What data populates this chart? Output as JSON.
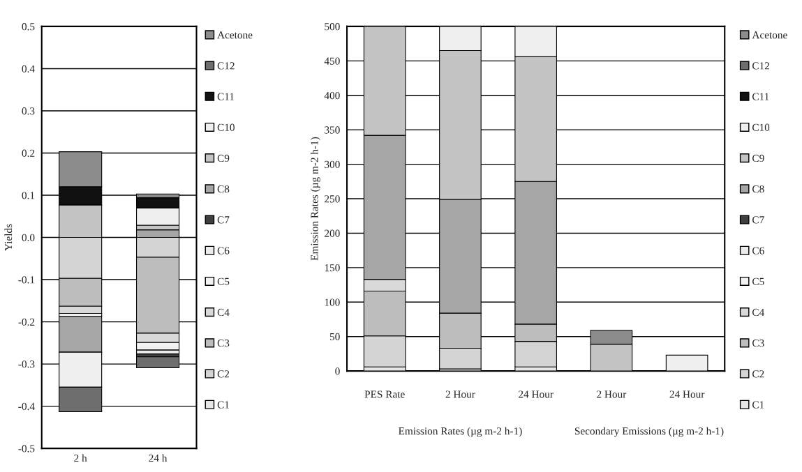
{
  "chart_data": [
    {
      "type": "bar",
      "stacked": true,
      "ylabel": "Yields",
      "categories": [
        "2 h",
        "24 h"
      ],
      "ylim": [
        -0.5,
        0.5
      ],
      "yticks": [
        -0.5,
        -0.4,
        -0.3,
        -0.2,
        -0.1,
        {
          "value": 0,
          "label": "0.0"
        },
        0.1,
        0.2,
        0.3,
        0.4,
        0.5
      ],
      "grid": "y",
      "legend": "right",
      "series": [
        {
          "name": "C1",
          "color": "#e6e6e6",
          "values": [
            null,
            null
          ]
        },
        {
          "name": "C2",
          "color": "#d4d4d4",
          "values": [
            -0.097,
            -0.047
          ]
        },
        {
          "name": "C3",
          "color": "#bdbdbd",
          "values": [
            -0.066,
            -0.18
          ]
        },
        {
          "name": "C4",
          "color": "#d9d9d9",
          "values": [
            -0.017,
            -0.022
          ]
        },
        {
          "name": "C5",
          "color": "#f2f2f2",
          "values": [
            -0.007,
            -0.018
          ]
        },
        {
          "name": "C6",
          "color": "#ececec",
          "values": [
            null,
            -0.009
          ]
        },
        {
          "name": "C7",
          "color": "#404040",
          "values": [
            null,
            -0.007
          ]
        },
        {
          "name": "C8",
          "color": "#a6a6a6",
          "values": [
            -0.085,
            0.018
          ]
        },
        {
          "name": "C9",
          "color": "#c4c4c4",
          "values": [
            0.077,
            0.011
          ]
        },
        {
          "name": "C10",
          "color": "#f0f0f0",
          "values": [
            -0.083,
            0.041
          ]
        },
        {
          "name": "C11",
          "color": "#111111",
          "values": [
            0.043,
            0.024
          ]
        },
        {
          "name": "C12",
          "color": "#6e6e6e",
          "values": [
            -0.058,
            -0.026
          ]
        },
        {
          "name": "Acetone",
          "color": "#8c8c8c",
          "values": [
            0.083,
            0.009
          ]
        }
      ]
    },
    {
      "type": "bar",
      "stacked": true,
      "ylabel": "Emission Rates (µg m-2 h-1)",
      "categories": [
        "PES Rate",
        "2 Hour",
        "24 Hour",
        "2 Hour",
        "24 Hour"
      ],
      "ylim": [
        0,
        500
      ],
      "yticks": [
        0,
        50,
        100,
        150,
        200,
        250,
        300,
        350,
        400,
        450,
        500
      ],
      "grid": "y",
      "legend": "right",
      "annotations": [
        "Emission Rates (µg m-2 h-1)",
        "Secondary Emissions (µg m-2 h-1)"
      ],
      "series": [
        {
          "name": "C1",
          "color": "#e6e6e6",
          "values": [
            6,
            3,
            6,
            null,
            null
          ]
        },
        {
          "name": "C2",
          "color": "#d4d4d4",
          "values": [
            45,
            30,
            37,
            null,
            null
          ]
        },
        {
          "name": "C3",
          "color": "#bdbdbd",
          "values": [
            65,
            51,
            25,
            null,
            null
          ]
        },
        {
          "name": "C4",
          "color": "#d9d9d9",
          "values": [
            17,
            null,
            null,
            null,
            null
          ]
        },
        {
          "name": "C5",
          "color": "#f2f2f2",
          "values": [
            null,
            null,
            null,
            null,
            null
          ]
        },
        {
          "name": "C6",
          "color": "#ececec",
          "values": [
            null,
            null,
            null,
            null,
            null
          ]
        },
        {
          "name": "C7",
          "color": "#404040",
          "values": [
            null,
            null,
            null,
            null,
            null
          ]
        },
        {
          "name": "C8",
          "color": "#a6a6a6",
          "values": [
            209,
            165,
            207,
            null,
            null
          ]
        },
        {
          "name": "C9",
          "color": "#c4c4c4",
          "values": [
            158,
            216,
            181,
            39,
            null
          ]
        },
        {
          "name": "C10",
          "color": "#f0f0f0",
          "values": [
            null,
            35,
            44,
            null,
            23
          ]
        },
        {
          "name": "C11",
          "color": "#111111",
          "values": [
            null,
            null,
            null,
            null,
            null
          ]
        },
        {
          "name": "C12",
          "color": "#6e6e6e",
          "values": [
            null,
            null,
            null,
            null,
            null
          ]
        },
        {
          "name": "Acetone",
          "color": "#8c8c8c",
          "values": [
            null,
            null,
            null,
            20,
            null
          ]
        }
      ]
    }
  ]
}
